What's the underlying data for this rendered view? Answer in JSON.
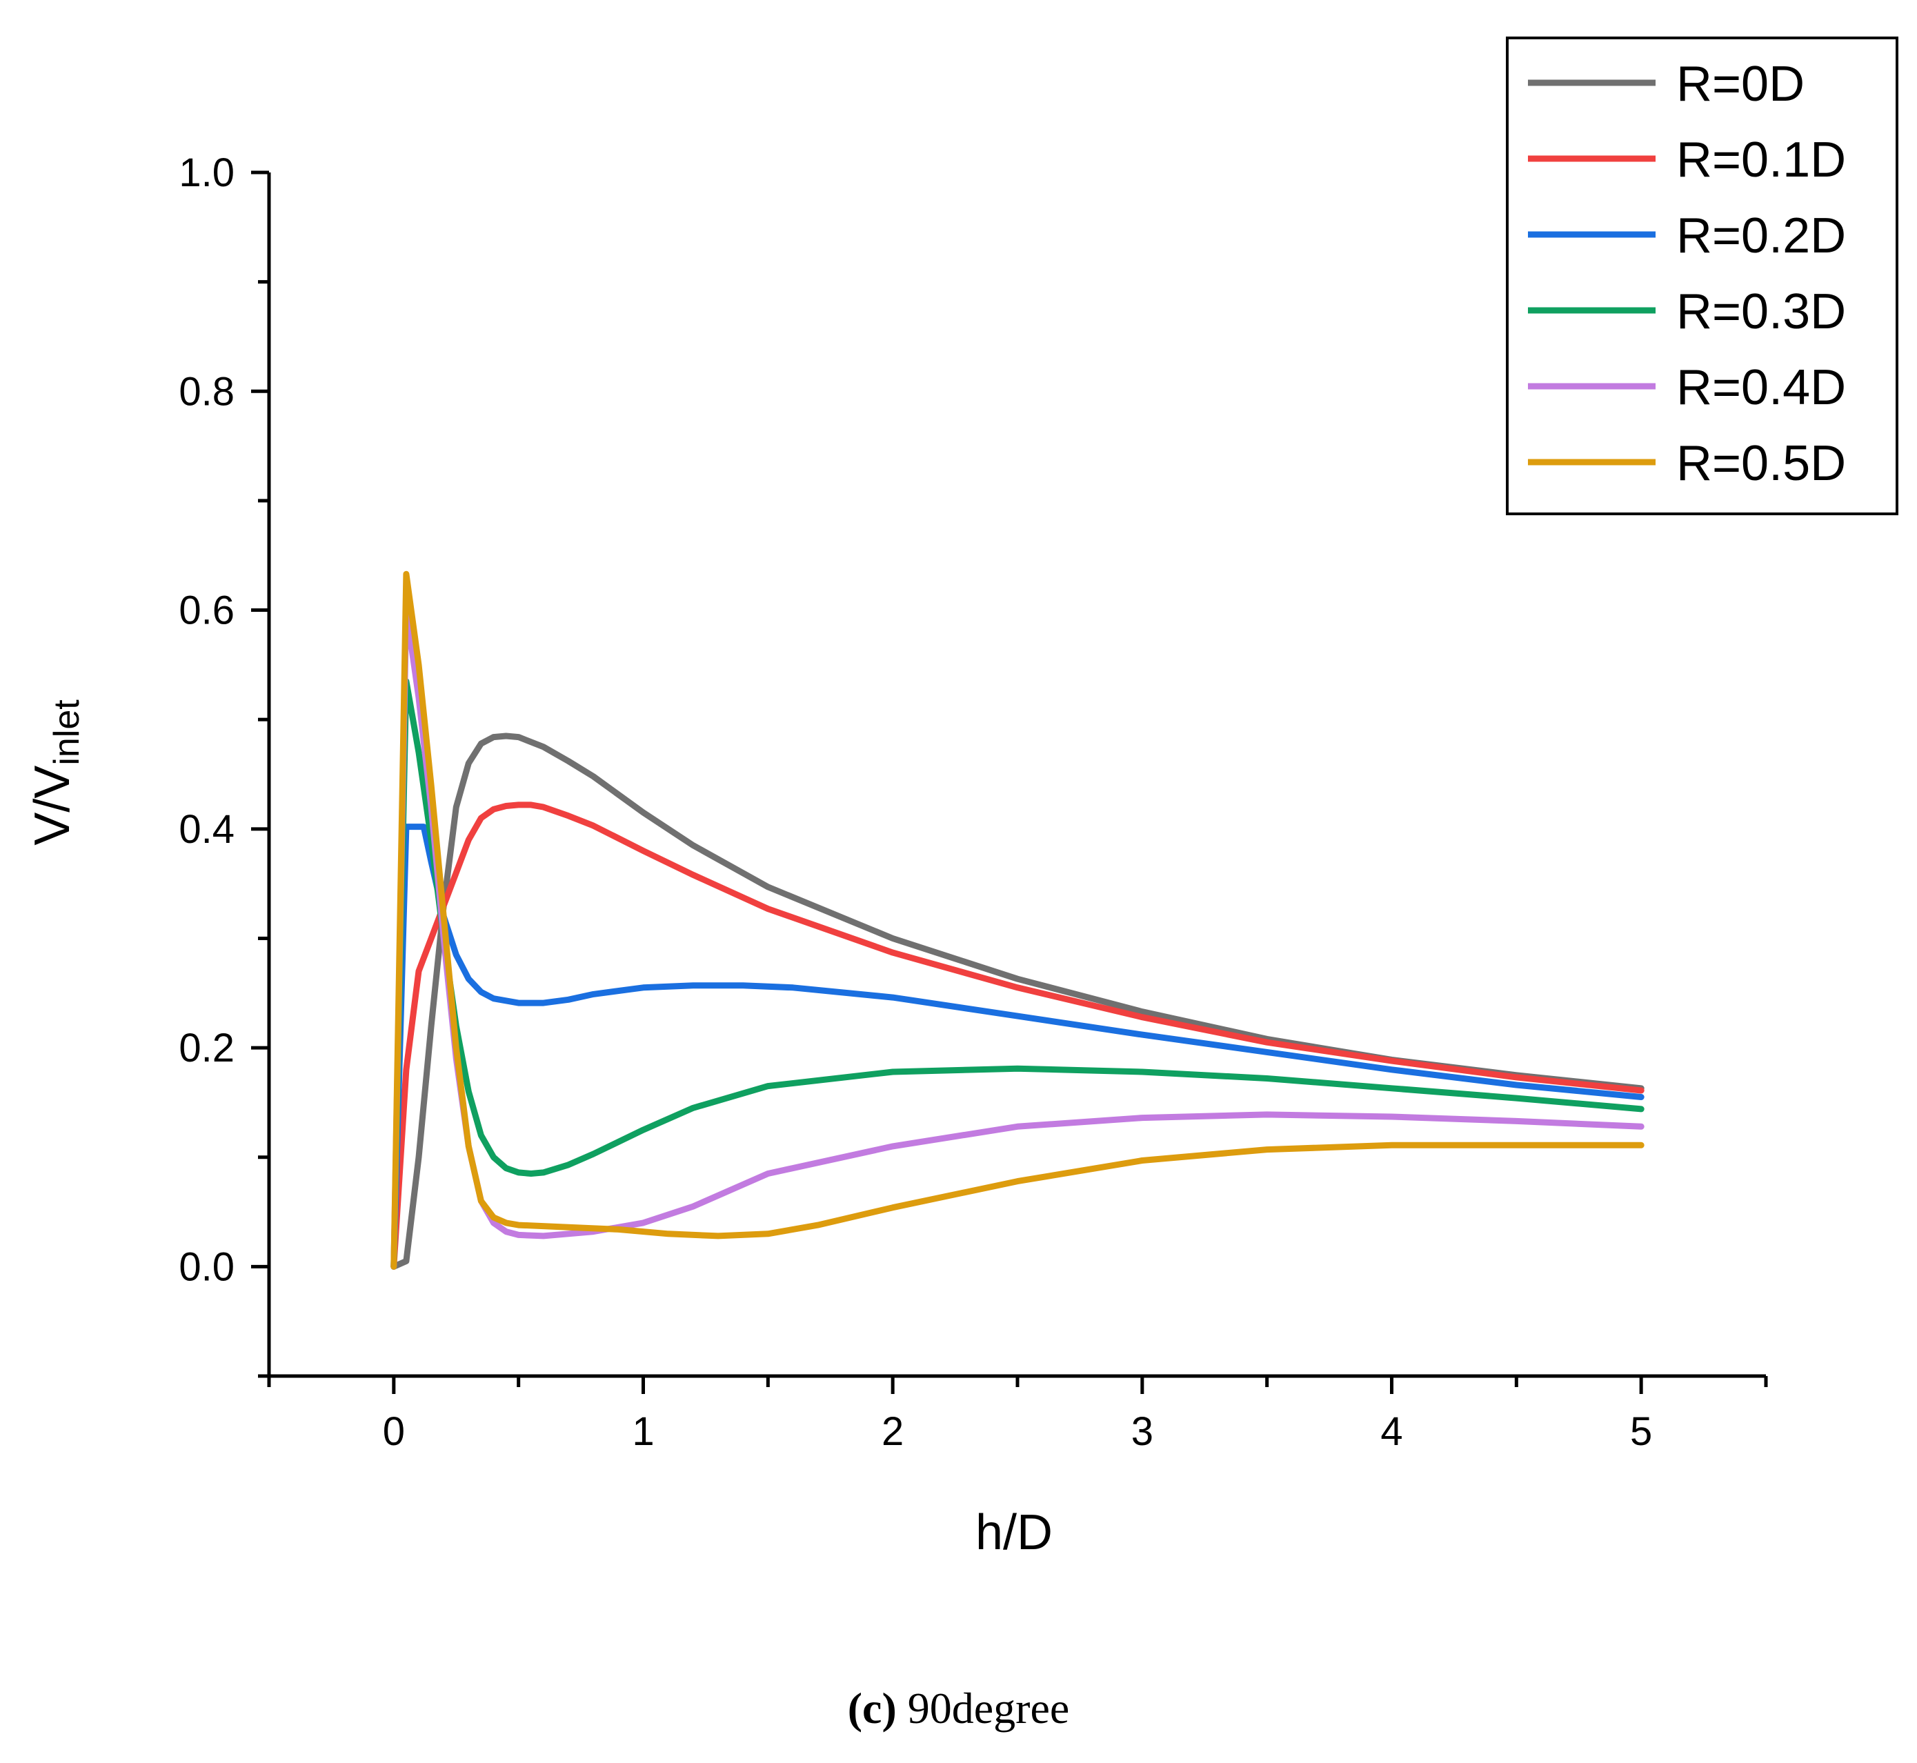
{
  "chart_data": {
    "type": "line",
    "xlabel": "h/D",
    "ylabel_main": "V/V",
    "ylabel_sub": "inlet",
    "xlim": [
      -0.5,
      5.5
    ],
    "ylim": [
      -0.1,
      1.0
    ],
    "x_ticks": [
      "0",
      "1",
      "2",
      "3",
      "4",
      "5"
    ],
    "y_ticks": [
      "0.0",
      "0.2",
      "0.4",
      "0.6",
      "0.8",
      "1.0"
    ],
    "x_tick_values": [
      0,
      1,
      2,
      3,
      4,
      5
    ],
    "y_tick_values": [
      0.0,
      0.2,
      0.4,
      0.6,
      0.8,
      1.0
    ],
    "legend_position": "top-right",
    "series": [
      {
        "name": "R=0D",
        "color": "#707070",
        "x": [
          0,
          0.05,
          0.1,
          0.15,
          0.2,
          0.25,
          0.3,
          0.35,
          0.4,
          0.45,
          0.5,
          0.6,
          0.7,
          0.8,
          1.0,
          1.2,
          1.5,
          2.0,
          2.5,
          3.0,
          3.5,
          4.0,
          4.5,
          5.0
        ],
        "y": [
          0,
          0.005,
          0.1,
          0.22,
          0.33,
          0.42,
          0.46,
          0.478,
          0.484,
          0.485,
          0.484,
          0.475,
          0.462,
          0.448,
          0.415,
          0.385,
          0.347,
          0.3,
          0.263,
          0.233,
          0.208,
          0.189,
          0.175,
          0.163
        ]
      },
      {
        "name": "R=0.1D",
        "color": "#f0403f",
        "x": [
          0,
          0.05,
          0.1,
          0.15,
          0.2,
          0.25,
          0.3,
          0.35,
          0.4,
          0.45,
          0.5,
          0.55,
          0.6,
          0.7,
          0.8,
          1.0,
          1.2,
          1.5,
          2.0,
          2.5,
          3.0,
          3.5,
          4.0,
          4.5,
          5.0
        ],
        "y": [
          0,
          0.18,
          0.27,
          0.3,
          0.33,
          0.36,
          0.39,
          0.41,
          0.418,
          0.421,
          0.422,
          0.422,
          0.42,
          0.412,
          0.403,
          0.38,
          0.358,
          0.327,
          0.287,
          0.255,
          0.228,
          0.205,
          0.188,
          0.173,
          0.161
        ]
      },
      {
        "name": "R=0.2D",
        "color": "#1a6fe0",
        "x": [
          0,
          0.05,
          0.12,
          0.15,
          0.2,
          0.25,
          0.3,
          0.35,
          0.4,
          0.5,
          0.6,
          0.7,
          0.8,
          1.0,
          1.2,
          1.4,
          1.6,
          2.0,
          2.5,
          3.0,
          3.5,
          4.0,
          4.5,
          5.0
        ],
        "y": [
          0,
          0.402,
          0.402,
          0.37,
          0.32,
          0.285,
          0.263,
          0.251,
          0.245,
          0.241,
          0.241,
          0.244,
          0.249,
          0.255,
          0.257,
          0.257,
          0.255,
          0.246,
          0.229,
          0.212,
          0.196,
          0.18,
          0.166,
          0.155
        ]
      },
      {
        "name": "R=0.3D",
        "color": "#0fa060",
        "x": [
          0,
          0.05,
          0.1,
          0.15,
          0.2,
          0.25,
          0.3,
          0.35,
          0.4,
          0.45,
          0.5,
          0.55,
          0.6,
          0.7,
          0.8,
          1.0,
          1.2,
          1.5,
          2.0,
          2.5,
          3.0,
          3.5,
          4.0,
          4.5,
          5.0
        ],
        "y": [
          0,
          0.535,
          0.47,
          0.39,
          0.3,
          0.22,
          0.16,
          0.12,
          0.1,
          0.09,
          0.086,
          0.085,
          0.086,
          0.093,
          0.103,
          0.125,
          0.145,
          0.165,
          0.178,
          0.181,
          0.178,
          0.172,
          0.163,
          0.154,
          0.144
        ]
      },
      {
        "name": "R=0.4D",
        "color": "#c27be0",
        "x": [
          0,
          0.05,
          0.1,
          0.15,
          0.2,
          0.25,
          0.3,
          0.35,
          0.4,
          0.45,
          0.5,
          0.6,
          0.7,
          0.8,
          1.0,
          1.2,
          1.5,
          2.0,
          2.5,
          3.0,
          3.5,
          4.0,
          4.5,
          5.0
        ],
        "y": [
          0,
          0.6,
          0.52,
          0.42,
          0.3,
          0.19,
          0.11,
          0.06,
          0.04,
          0.032,
          0.029,
          0.028,
          0.03,
          0.032,
          0.04,
          0.055,
          0.085,
          0.11,
          0.128,
          0.136,
          0.139,
          0.137,
          0.133,
          0.128
        ]
      },
      {
        "name": "R=0.5D",
        "color": "#dd9c0e",
        "x": [
          0,
          0.05,
          0.1,
          0.15,
          0.2,
          0.25,
          0.3,
          0.35,
          0.4,
          0.45,
          0.5,
          0.7,
          0.9,
          1.1,
          1.3,
          1.5,
          1.7,
          2.0,
          2.5,
          3.0,
          3.5,
          4.0,
          4.5,
          5.0
        ],
        "y": [
          0,
          0.633,
          0.55,
          0.44,
          0.32,
          0.2,
          0.11,
          0.06,
          0.045,
          0.04,
          0.038,
          0.036,
          0.034,
          0.03,
          0.028,
          0.03,
          0.038,
          0.054,
          0.078,
          0.097,
          0.107,
          0.111,
          0.111,
          0.111
        ]
      }
    ]
  },
  "caption": {
    "label": "(c)",
    "text": " 90degree"
  }
}
